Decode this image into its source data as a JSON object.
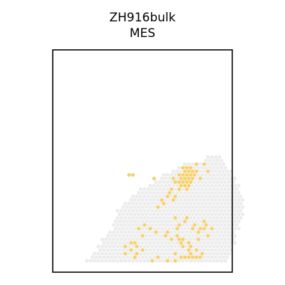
{
  "chart_data": {
    "type": "scatter",
    "title": "ZH916bulk",
    "subtitle": "MES",
    "xlabel": "",
    "ylabel": "",
    "grid": false,
    "axes_ticks": false,
    "colors": {
      "background_spot": "#ececec",
      "highlight": "#f5d170",
      "frame": "#000000"
    },
    "tissue_rows": [
      [
        29,
        38,
        41
      ],
      [
        28,
        38,
        42
      ],
      [
        27,
        32,
        42
      ],
      [
        26,
        31,
        43
      ],
      [
        25,
        29,
        44
      ],
      [
        24,
        27,
        44
      ],
      [
        23,
        26,
        45
      ],
      [
        22,
        25,
        45
      ],
      [
        21,
        23,
        46
      ],
      [
        20,
        21,
        46
      ],
      [
        19,
        20,
        46
      ],
      [
        18,
        19,
        47
      ],
      [
        17,
        18,
        47
      ],
      [
        16,
        17,
        47
      ],
      [
        15,
        16,
        47
      ],
      [
        14,
        15,
        47
      ],
      [
        13,
        15,
        47
      ],
      [
        12,
        15,
        47
      ],
      [
        11,
        14,
        46
      ],
      [
        10,
        14,
        46
      ],
      [
        9,
        14,
        46
      ],
      [
        8,
        13,
        45
      ],
      [
        7,
        12,
        45
      ],
      [
        6,
        11,
        45
      ],
      [
        5,
        11,
        45
      ],
      [
        4,
        10,
        44
      ],
      [
        3,
        10,
        44
      ],
      [
        2,
        9,
        44
      ],
      [
        1,
        8,
        43
      ],
      [
        0,
        7,
        43
      ]
    ],
    "highlight_points": [
      [
        32,
        26
      ],
      [
        33,
        26
      ],
      [
        34,
        26
      ],
      [
        32,
        25
      ],
      [
        33,
        25
      ],
      [
        34,
        25
      ],
      [
        35,
        25
      ],
      [
        31,
        24
      ],
      [
        32,
        24
      ],
      [
        33,
        24
      ],
      [
        34,
        24
      ],
      [
        35,
        24
      ],
      [
        31,
        23
      ],
      [
        32,
        23
      ],
      [
        33,
        23
      ],
      [
        34,
        23
      ],
      [
        30,
        22
      ],
      [
        31,
        22
      ],
      [
        32,
        22
      ],
      [
        33,
        22
      ],
      [
        34,
        22
      ],
      [
        31,
        21
      ],
      [
        32,
        21
      ],
      [
        33,
        21
      ],
      [
        29,
        23
      ],
      [
        35,
        27
      ],
      [
        36,
        23
      ],
      [
        38,
        25
      ],
      [
        37,
        27
      ],
      [
        24,
        23
      ],
      [
        19,
        24
      ],
      [
        18,
        24
      ],
      [
        33,
        20
      ],
      [
        31,
        20
      ],
      [
        29,
        20
      ],
      [
        28,
        19
      ],
      [
        30,
        18
      ],
      [
        28,
        18
      ],
      [
        29,
        17
      ],
      [
        26,
        17
      ],
      [
        27,
        16
      ],
      [
        25,
        15
      ],
      [
        33,
        12
      ],
      [
        32,
        11
      ],
      [
        30,
        12
      ],
      [
        35,
        10
      ],
      [
        31,
        10
      ],
      [
        34,
        9
      ],
      [
        30,
        9
      ],
      [
        37,
        11
      ],
      [
        38,
        10
      ],
      [
        36,
        9
      ],
      [
        36,
        8
      ],
      [
        22,
        10
      ],
      [
        23,
        9
      ],
      [
        20,
        9
      ],
      [
        21,
        7
      ],
      [
        25,
        8
      ],
      [
        28,
        8
      ],
      [
        27,
        7
      ],
      [
        30,
        7
      ],
      [
        31,
        6
      ],
      [
        29,
        6
      ],
      [
        31,
        5
      ],
      [
        32,
        4
      ],
      [
        33,
        3
      ],
      [
        34,
        2
      ],
      [
        33,
        1
      ],
      [
        32,
        1
      ],
      [
        30,
        2
      ],
      [
        31,
        1
      ],
      [
        34,
        1
      ],
      [
        35,
        1
      ],
      [
        36,
        1
      ],
      [
        37,
        2
      ],
      [
        35,
        3
      ],
      [
        34,
        4
      ],
      [
        33,
        5
      ],
      [
        32,
        6
      ],
      [
        18,
        5
      ],
      [
        17,
        4
      ],
      [
        19,
        5
      ],
      [
        18,
        3
      ],
      [
        20,
        4
      ],
      [
        20,
        2
      ],
      [
        21,
        3
      ],
      [
        19,
        1
      ],
      [
        17,
        2
      ],
      [
        25,
        1
      ],
      [
        28,
        0
      ],
      [
        30,
        0
      ],
      [
        24,
        0
      ],
      [
        36,
        6
      ],
      [
        38,
        7
      ],
      [
        39,
        9
      ],
      [
        37,
        9
      ]
    ]
  }
}
